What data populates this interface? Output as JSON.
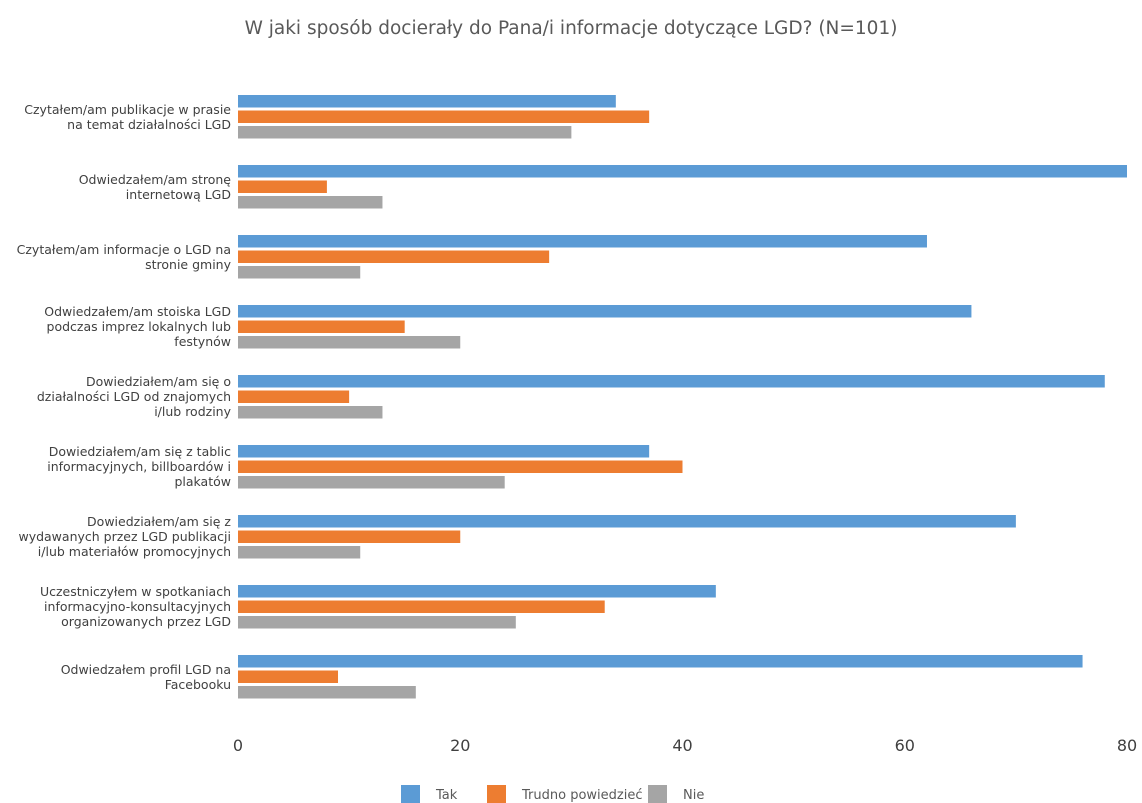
{
  "chart_data": {
    "type": "bar",
    "orientation": "horizontal",
    "title": "W jaki sposób docierały do Pana/i informacje dotyczące LGD? (N=101)",
    "categories": [
      [
        "Czytałem/am publikacje w prasie",
        "na temat działalności LGD"
      ],
      [
        "Odwiedzałem/am stronę",
        "internetową LGD"
      ],
      [
        "Czytałem/am informacje o LGD na",
        "stronie gminy"
      ],
      [
        "Odwiedzałem/am stoiska LGD",
        "podczas imprez lokalnych lub",
        "festynów"
      ],
      [
        "Dowiedziałem/am się o",
        "działalności LGD od znajomych",
        "i/lub rodziny"
      ],
      [
        "Dowiedziałem/am się z tablic",
        "informacyjnych, billboardów i",
        "plakatów"
      ],
      [
        "Dowiedziałem/am się z",
        "wydawanych przez LGD publikacji",
        "i/lub materiałów promocyjnych"
      ],
      [
        "Uczestniczyłem w spotkaniach",
        "informacyjno-konsultacyjnych",
        "organizowanych przez LGD"
      ],
      [
        "Odwiedzałem profil LGD na",
        "Facebooku"
      ]
    ],
    "series": [
      {
        "name": "Tak",
        "color": "#5b9bd5",
        "values": [
          34,
          80,
          62,
          66,
          78,
          37,
          70,
          43,
          76
        ]
      },
      {
        "name": "Trudno powiedzieć",
        "color": "#ed7d31",
        "values": [
          37,
          8,
          28,
          15,
          10,
          40,
          20,
          33,
          9
        ]
      },
      {
        "name": "Nie",
        "color": "#a5a5a5",
        "values": [
          30,
          13,
          11,
          20,
          13,
          24,
          11,
          25,
          16
        ]
      }
    ],
    "xlim": [
      0,
      80
    ],
    "xticks": [
      0,
      20,
      40,
      60,
      80
    ],
    "grid": false,
    "legend": "bottom"
  }
}
